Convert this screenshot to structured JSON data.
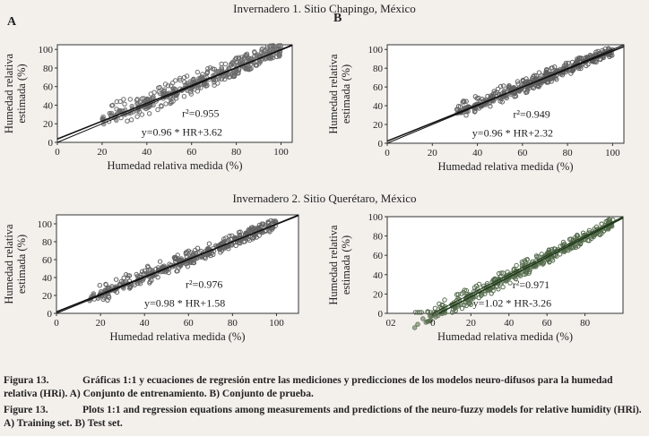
{
  "row1_title": "Invernadero 1. Sitio Chapingo, México",
  "row2_title": "Invernadero 2. Sitio Querétaro, México",
  "caption_es_label": "Figura 13.",
  "caption_es_text": "Gráficas 1:1 y ecuaciones de regresión entre las mediciones y predicciones de los modelos neuro-difusos para la humedad relativa (HRi). A) Conjunto de entrenamiento. B) Conjunto de prueba.",
  "caption_en_label": "Figure 13.",
  "caption_en_text": "Plots 1:1 and regression equations among measurements and predictions of the neuro-fuzzy models for relative humidity (HRi). A) Training set. B) Test set.",
  "chart_data": [
    {
      "type": "scatter",
      "panel": "A",
      "xlabel": "Humedad relativa medida (%)",
      "ylabel": [
        "Humedad relativa",
        "estimada (%)"
      ],
      "xlim": [
        0,
        105
      ],
      "ylim": [
        0,
        105
      ],
      "xticks": [
        0,
        20,
        40,
        60,
        80,
        100
      ],
      "yticks": [
        0,
        20,
        40,
        60,
        80,
        100
      ],
      "r2": "r²=0.955",
      "equation": "y=0.96 * HR+3.62",
      "fit": {
        "slope": 0.96,
        "intercept": 3.62
      },
      "x_range": [
        20,
        100
      ],
      "spread": 13,
      "marker_color": "#6a6a6a",
      "line_color": "#111111"
    },
    {
      "type": "scatter",
      "panel": "B",
      "xlabel": "Humedad relativa medida (%)",
      "ylabel": [
        "Humedad relativa",
        "estimada (%)"
      ],
      "xlim": [
        0,
        105
      ],
      "ylim": [
        0,
        105
      ],
      "xticks": [
        0,
        20,
        40,
        60,
        80,
        100
      ],
      "yticks": [
        0,
        20,
        40,
        60,
        80,
        100
      ],
      "r2": "r²=0.949",
      "equation": "y=0.96 * HR+2.32",
      "fit": {
        "slope": 0.96,
        "intercept": 2.32
      },
      "x_range": [
        30,
        100
      ],
      "spread": 9,
      "marker_color": "#5e5e5e",
      "line_color": "#111111"
    },
    {
      "type": "scatter",
      "panel": "",
      "xlabel": "Humedad relativa medida (%)",
      "ylabel": [
        "Humedad relativa",
        "estimada (%)"
      ],
      "xlim": [
        0,
        110
      ],
      "ylim": [
        0,
        110
      ],
      "xticks": [
        0,
        20,
        40,
        60,
        80,
        100
      ],
      "yticks": [
        0,
        20,
        40,
        60,
        80,
        100
      ],
      "r2": "r²=0.976",
      "equation": "y=0.98 * HR+1.58",
      "fit": {
        "slope": 0.98,
        "intercept": 1.58
      },
      "x_range": [
        15,
        100
      ],
      "spread": 10,
      "marker_color": "#626262",
      "line_color": "#111111"
    },
    {
      "type": "scatter",
      "panel": "",
      "xlabel": "Humedad relativa medida (%)",
      "ylabel": [
        "Humedad relativa",
        "estimada (%)"
      ],
      "xlim": [
        -24,
        100
      ],
      "ylim": [
        0,
        100
      ],
      "xticks": [
        0,
        20,
        40,
        60,
        80
      ],
      "xtick_extra_label": "02",
      "yticks": [
        0,
        20,
        40,
        60,
        80,
        100
      ],
      "r2": "r²=0.971",
      "equation": "y=1.02 * HR-3.26",
      "fit": {
        "slope": 1.02,
        "intercept": -3.26
      },
      "x_range": [
        -10,
        95
      ],
      "spread": 9,
      "marker_color": "#556b4c",
      "line_color": "#1f3a1a"
    }
  ]
}
